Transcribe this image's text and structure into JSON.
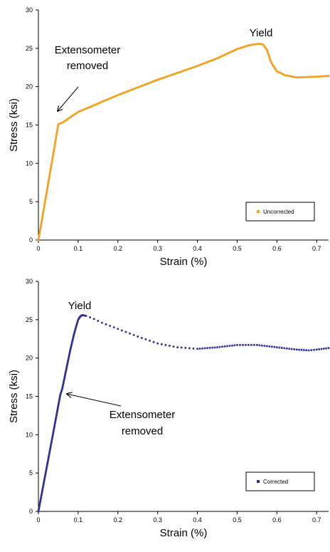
{
  "chart_data": [
    {
      "type": "scatter",
      "xlabel": "Strain (%)",
      "ylabel": "Stress (ksi)",
      "xlim": [
        0,
        0.73
      ],
      "ylim": [
        0,
        30
      ],
      "xticks": [
        "0",
        "0.1",
        "0.2",
        "0.3",
        "0.4",
        "0.5",
        "0.6",
        "0.7"
      ],
      "yticks": [
        "0",
        "5",
        "10",
        "15",
        "20",
        "25",
        "30"
      ],
      "grid": false,
      "legend_placement": "bottom-right",
      "series": [
        {
          "name": "Uncorrected",
          "color": "#f4a11e",
          "marker": "square",
          "points": [
            [
              0,
              0
            ],
            [
              0.01,
              3
            ],
            [
              0.02,
              6
            ],
            [
              0.03,
              9
            ],
            [
              0.04,
              12
            ],
            [
              0.05,
              15.1
            ],
            [
              0.06,
              15.3
            ],
            [
              0.1,
              16.7
            ],
            [
              0.15,
              17.8
            ],
            [
              0.2,
              18.9
            ],
            [
              0.25,
              19.9
            ],
            [
              0.3,
              20.9
            ],
            [
              0.35,
              21.8
            ],
            [
              0.4,
              22.7
            ],
            [
              0.45,
              23.7
            ],
            [
              0.5,
              24.9
            ],
            [
              0.53,
              25.4
            ],
            [
              0.555,
              25.6
            ],
            [
              0.565,
              25.5
            ],
            [
              0.575,
              24.8
            ],
            [
              0.585,
              23.2
            ],
            [
              0.6,
              22.0
            ],
            [
              0.62,
              21.5
            ],
            [
              0.65,
              21.2
            ],
            [
              0.7,
              21.3
            ],
            [
              0.73,
              21.4
            ]
          ]
        }
      ],
      "annotations": [
        {
          "label": "Extensometer removed",
          "text": [
            "Extensometer",
            "removed"
          ],
          "x": 0.05,
          "y": 15.1
        },
        {
          "label": "Yield",
          "text": [
            "Yield"
          ],
          "x": 0.555,
          "y": 25.6
        }
      ]
    },
    {
      "type": "scatter",
      "xlabel": "Strain (%)",
      "ylabel": "Stress (ksi)",
      "xlim": [
        0,
        0.73
      ],
      "ylim": [
        0,
        30
      ],
      "xticks": [
        "0",
        "0.1",
        "0.2",
        "0.3",
        "0.4",
        "0.5",
        "0.6",
        "0.7"
      ],
      "yticks": [
        "0",
        "5",
        "10",
        "15",
        "20",
        "25",
        "30"
      ],
      "grid": false,
      "legend_placement": "bottom-right",
      "series": [
        {
          "name": "Corrected",
          "color": "#2e3192",
          "marker": "square",
          "points": [
            [
              0,
              0
            ],
            [
              0.02,
              5.5
            ],
            [
              0.04,
              11
            ],
            [
              0.055,
              15.2
            ],
            [
              0.06,
              16
            ],
            [
              0.07,
              18.5
            ],
            [
              0.08,
              21
            ],
            [
              0.09,
              23.2
            ],
            [
              0.1,
              25
            ],
            [
              0.105,
              25.4
            ],
            [
              0.11,
              25.6
            ],
            [
              0.12,
              25.5
            ],
            [
              0.14,
              25.1
            ],
            [
              0.16,
              24.6
            ],
            [
              0.2,
              23.8
            ],
            [
              0.25,
              22.8
            ],
            [
              0.3,
              21.9
            ],
            [
              0.35,
              21.4
            ],
            [
              0.4,
              21.2
            ],
            [
              0.45,
              21.4
            ],
            [
              0.5,
              21.7
            ],
            [
              0.55,
              21.7
            ],
            [
              0.6,
              21.4
            ],
            [
              0.65,
              21.1
            ],
            [
              0.68,
              21.0
            ],
            [
              0.7,
              21.1
            ],
            [
              0.73,
              21.3
            ]
          ]
        }
      ],
      "annotations": [
        {
          "label": "Yield",
          "text": [
            "Yield"
          ],
          "x": 0.11,
          "y": 25.6
        },
        {
          "label": "Extensometer removed",
          "text": [
            "Extensometer",
            "removed"
          ],
          "x": 0.055,
          "y": 15.2
        }
      ]
    }
  ]
}
